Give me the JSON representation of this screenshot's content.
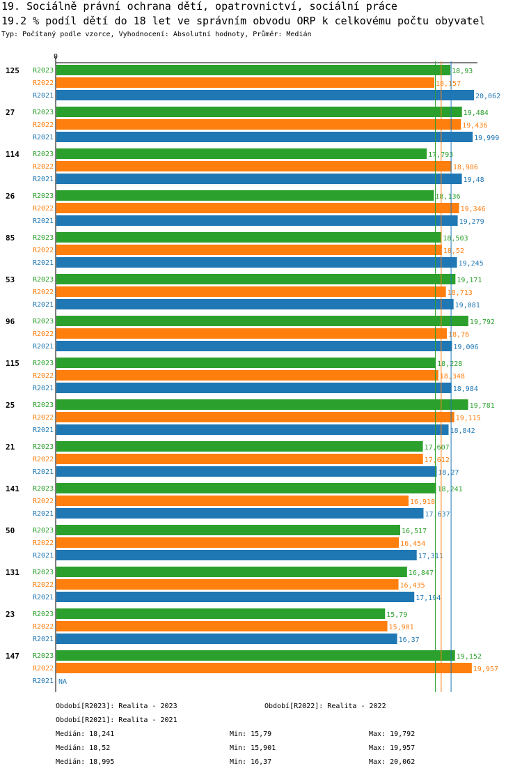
{
  "title": "19. Sociálně právní ochrana dětí, opatrovnictví, sociální práce",
  "subtitle": "19.2 % podíl dětí do 18 let ve správním obvodu ORP k celkovému počtu obyvatel",
  "type_line": "Typ: Počítaný podle vzorce, Vyhodnocení: Absolutní hodnoty, Průměr: Medián",
  "colors": {
    "R2023": "#2ca02c",
    "R2022": "#ff7f0e",
    "R2021": "#1f77b4"
  },
  "chart_data": {
    "type": "bar",
    "orientation": "horizontal",
    "axis_zero_label": "0",
    "xlim": [
      0,
      20.062
    ],
    "series_labels": [
      "R2023",
      "R2022",
      "R2021"
    ],
    "groups": [
      {
        "id": "125",
        "values": {
          "R2023": "18,93",
          "R2022": "18,157",
          "R2021": "20,062"
        }
      },
      {
        "id": "27",
        "values": {
          "R2023": "19,484",
          "R2022": "19,436",
          "R2021": "19,999"
        }
      },
      {
        "id": "114",
        "values": {
          "R2023": "17,793",
          "R2022": "18,986",
          "R2021": "19,48"
        }
      },
      {
        "id": "26",
        "values": {
          "R2023": "18,136",
          "R2022": "19,346",
          "R2021": "19,279"
        }
      },
      {
        "id": "85",
        "values": {
          "R2023": "18,503",
          "R2022": "18,52",
          "R2021": "19,245"
        }
      },
      {
        "id": "53",
        "values": {
          "R2023": "19,171",
          "R2022": "18,713",
          "R2021": "19,081"
        }
      },
      {
        "id": "96",
        "values": {
          "R2023": "19,792",
          "R2022": "18,76",
          "R2021": "19,006"
        }
      },
      {
        "id": "115",
        "values": {
          "R2023": "18,228",
          "R2022": "18,348",
          "R2021": "18,984"
        }
      },
      {
        "id": "25",
        "values": {
          "R2023": "19,781",
          "R2022": "19,115",
          "R2021": "18,842"
        }
      },
      {
        "id": "21",
        "values": {
          "R2023": "17,607",
          "R2022": "17,612",
          "R2021": "18,27"
        }
      },
      {
        "id": "141",
        "values": {
          "R2023": "18,241",
          "R2022": "16,918",
          "R2021": "17,637"
        }
      },
      {
        "id": "50",
        "values": {
          "R2023": "16,517",
          "R2022": "16,454",
          "R2021": "17,311"
        }
      },
      {
        "id": "131",
        "values": {
          "R2023": "16,847",
          "R2022": "16,435",
          "R2021": "17,194"
        }
      },
      {
        "id": "23",
        "values": {
          "R2023": "15,79",
          "R2022": "15,901",
          "R2021": "16,37"
        }
      },
      {
        "id": "147",
        "values": {
          "R2023": "19,152",
          "R2022": "19,957",
          "R2021": "NA"
        }
      }
    ],
    "median_lines": {
      "R2023": 18.241,
      "R2022": 18.52,
      "R2021": 18.995
    }
  },
  "legend": {
    "r2023": "Období[R2023]: Realita - 2023",
    "r2022": "Období[R2022]: Realita - 2022",
    "r2021": "Období[R2021]: Realita - 2021"
  },
  "stats": {
    "r2023": {
      "median": "Medián: 18,241",
      "min": "Min: 15,79",
      "max": "Max: 19,792"
    },
    "r2022": {
      "median": "Medián: 18,52",
      "min": "Min: 15,901",
      "max": "Max: 19,957"
    },
    "r2021": {
      "median": "Medián: 18,995",
      "min": "Min: 16,37",
      "max": "Max: 20,062"
    }
  }
}
